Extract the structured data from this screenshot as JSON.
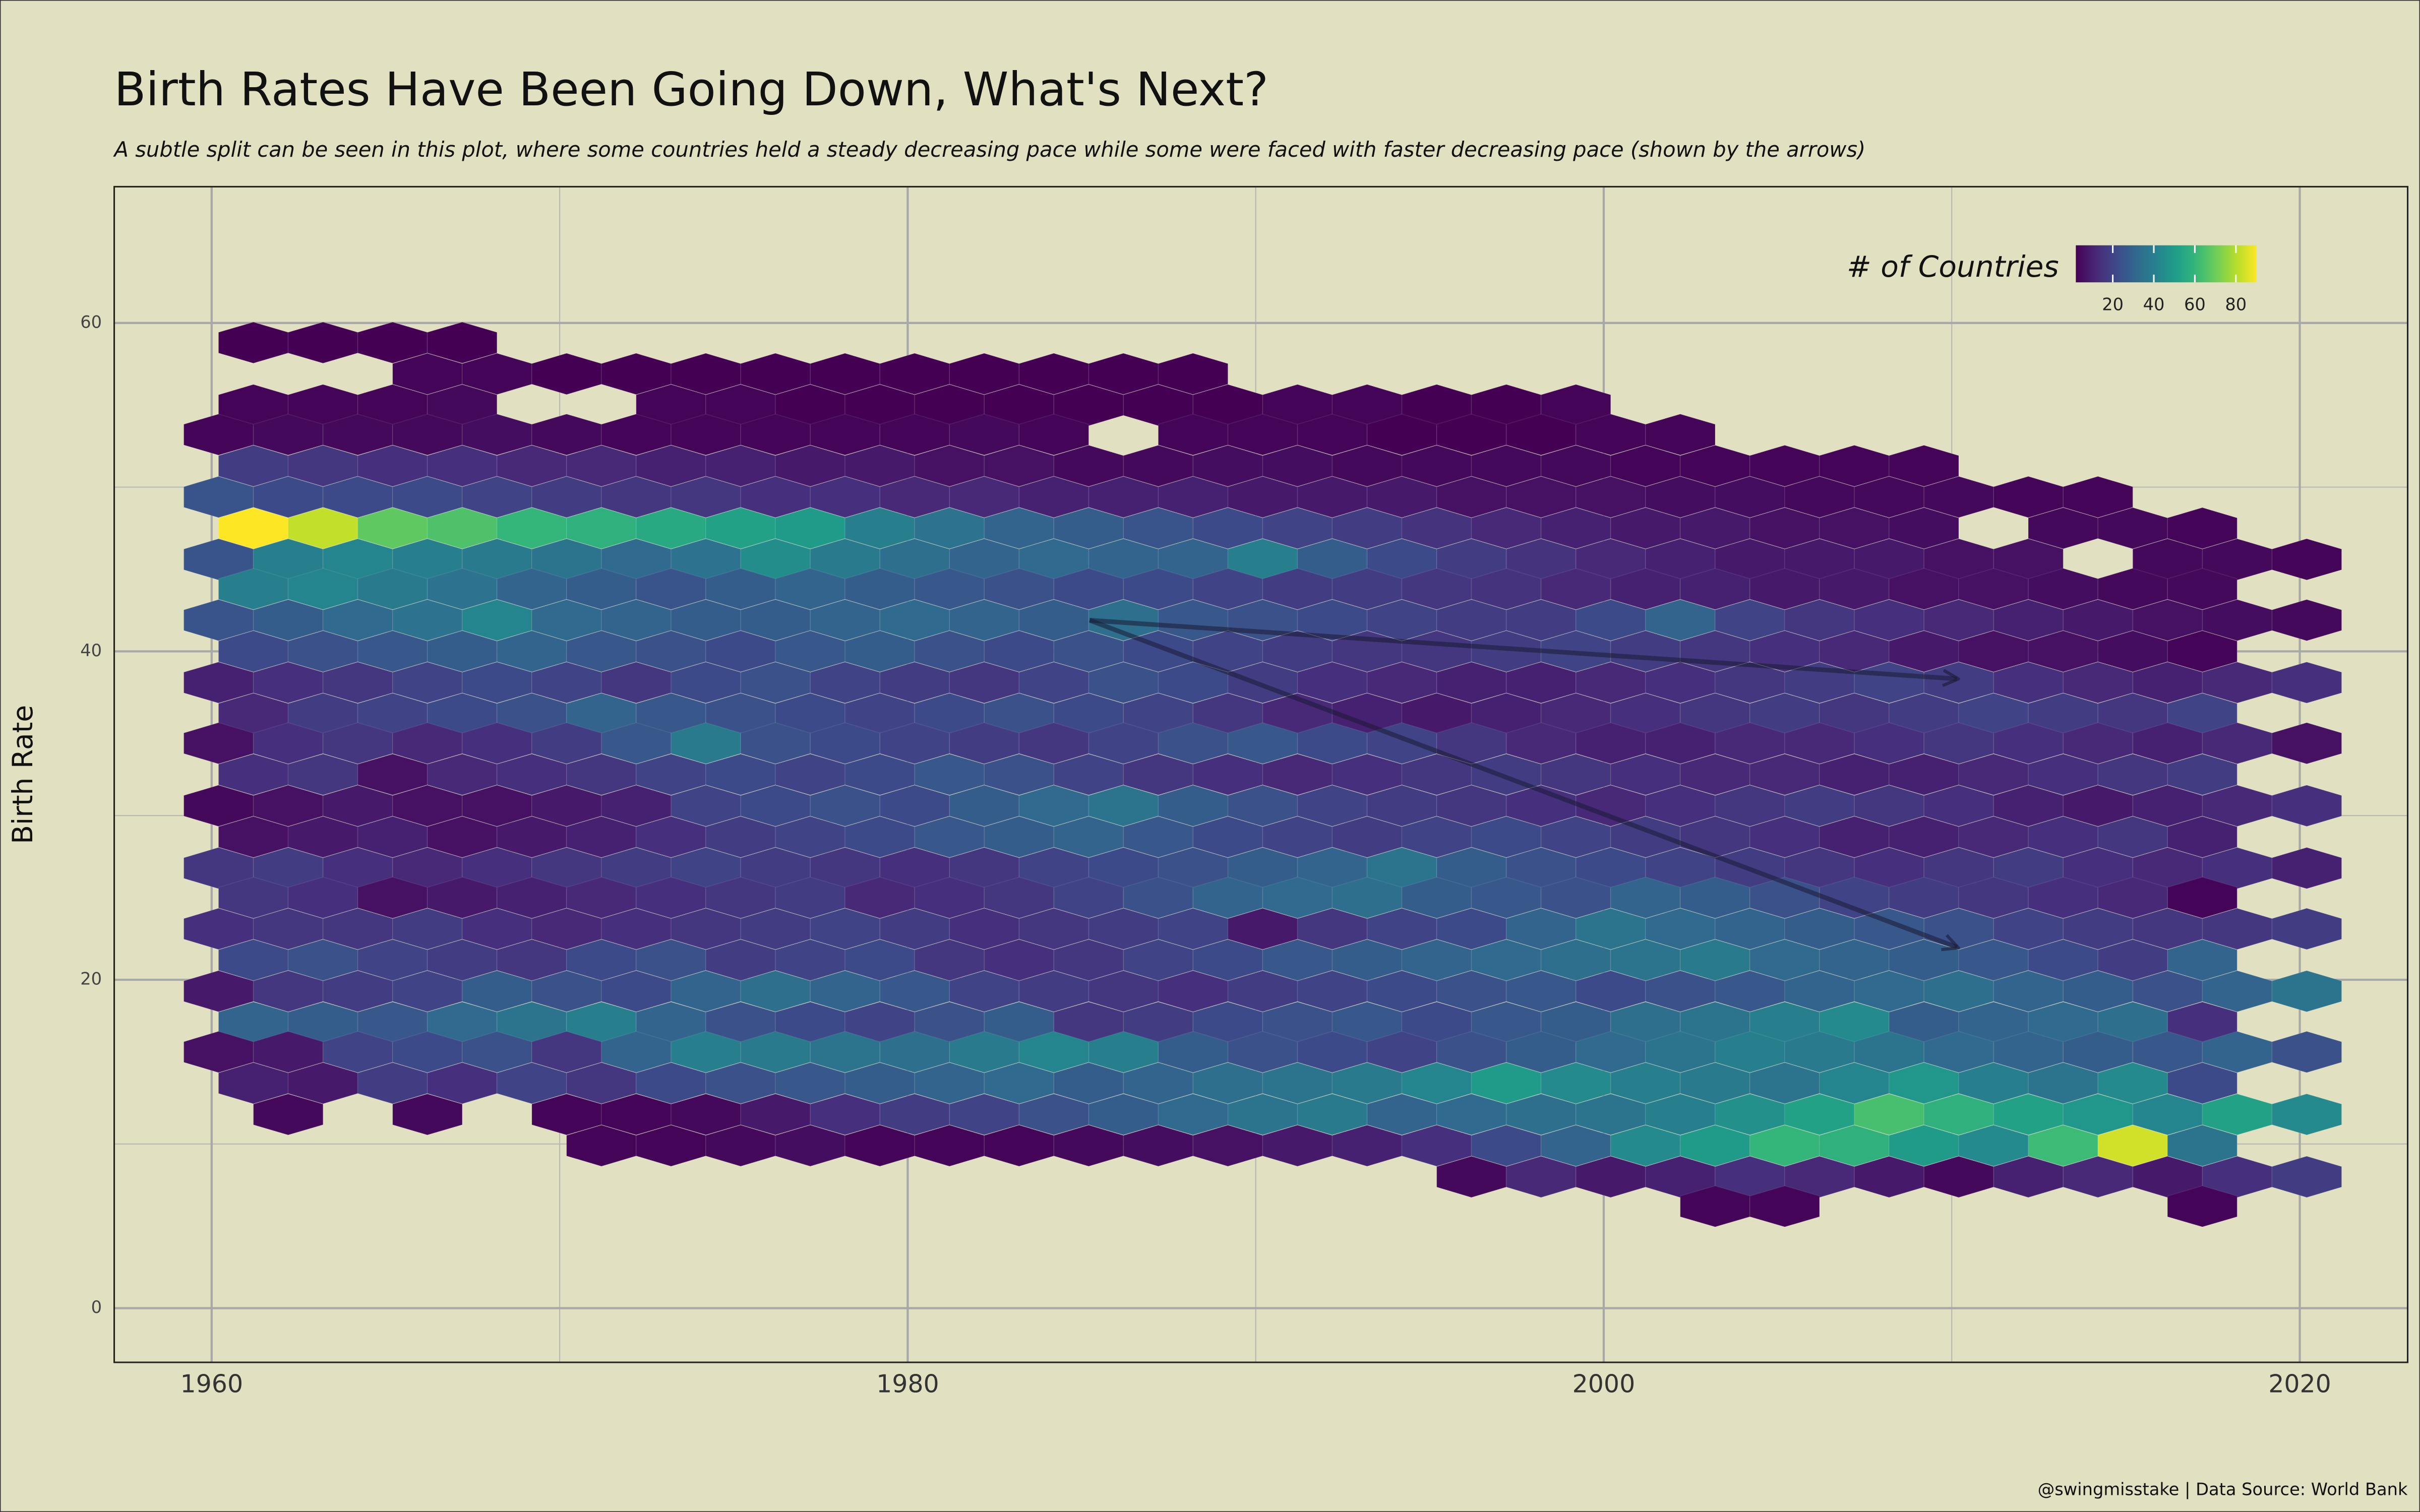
{
  "chart_data": {
    "type": "hexbin",
    "title": "Birth Rates Have Been Going Down, What's Next?",
    "subtitle": "A subtle split can be seen in this plot, where some countries held a steady decreasing pace while some were faced with faster decreasing pace (shown by the arrows)",
    "y_label": "Birth Rate",
    "caption": "@swingmisstake | Data Source: World Bank",
    "xlim": [
      1957.2,
      2023.1
    ],
    "ylim": [
      -3.3,
      68.3
    ],
    "xticks": [
      1960,
      1980,
      2000,
      2020
    ],
    "x_minor_ticks": [
      1970,
      1990,
      2010
    ],
    "yticks": [
      0,
      20,
      40,
      60
    ],
    "y_minor_ticks": [
      10,
      30,
      50
    ],
    "grid": true,
    "binwidth": [
      2,
      1.88
    ],
    "colormap": "viridis",
    "legend": {
      "title": "# of Countries",
      "position": "top-right",
      "lim": [
        2,
        90
      ],
      "ticks": [
        20,
        40,
        60,
        80
      ]
    },
    "rows": [
      {
        "y": 58.8,
        "x0": 1961.2,
        "counts": [
          2,
          2,
          2,
          2
        ]
      },
      {
        "y": 56.9,
        "x0": 1966.2,
        "counts": [
          3,
          3,
          2,
          2,
          2,
          2,
          2,
          2,
          2,
          2,
          2,
          2
        ]
      },
      {
        "y": 55.0,
        "x0": 1961.2,
        "counts": [
          3,
          3,
          3,
          4,
          null,
          null,
          3,
          3,
          2,
          2,
          2,
          2,
          2,
          2,
          2,
          3,
          3,
          2,
          2,
          3
        ]
      },
      {
        "y": 53.2,
        "x0": 1960.2,
        "counts": [
          3,
          4,
          4,
          4,
          5,
          4,
          3,
          3,
          3,
          3,
          3,
          4,
          3,
          null,
          3,
          3,
          3,
          2,
          2,
          2,
          3,
          3
        ]
      },
      {
        "y": 51.3,
        "x0": 1961.2,
        "counts": [
          18,
          16,
          14,
          14,
          12,
          12,
          10,
          10,
          8,
          8,
          6,
          6,
          4,
          4,
          5,
          5,
          4,
          4,
          4,
          4,
          3,
          3,
          3,
          3,
          3
        ]
      },
      {
        "y": 49.4,
        "x0": 1960.2,
        "counts": [
          25,
          22,
          22,
          22,
          20,
          18,
          16,
          16,
          14,
          14,
          12,
          12,
          10,
          10,
          10,
          8,
          8,
          8,
          6,
          6,
          6,
          5,
          5,
          4,
          4,
          4,
          3,
          3
        ]
      },
      {
        "y": 47.5,
        "x0": 1961.2,
        "counts": [
          90,
          82,
          68,
          65,
          60,
          58,
          55,
          52,
          50,
          40,
          35,
          30,
          28,
          25,
          22,
          20,
          18,
          15,
          12,
          10,
          8,
          8,
          6,
          6,
          5,
          null,
          4,
          4,
          3
        ]
      },
      {
        "y": 45.6,
        "x0": 1960.2,
        "counts": [
          25,
          40,
          42,
          40,
          38,
          36,
          32,
          35,
          45,
          38,
          34,
          30,
          32,
          30,
          30,
          40,
          28,
          22,
          18,
          15,
          12,
          10,
          8,
          8,
          8,
          6,
          6,
          null,
          4,
          4,
          3
        ]
      },
      {
        "y": 43.8,
        "x0": 1961.2,
        "counts": [
          40,
          42,
          38,
          35,
          30,
          28,
          25,
          28,
          30,
          28,
          26,
          24,
          22,
          22,
          20,
          18,
          18,
          16,
          15,
          12,
          10,
          10,
          8,
          8,
          6,
          6,
          5,
          4,
          4
        ]
      },
      {
        "y": 41.9,
        "x0": 1960.2,
        "counts": [
          25,
          28,
          32,
          35,
          42,
          32,
          30,
          28,
          28,
          30,
          32,
          30,
          28,
          34,
          26,
          24,
          22,
          20,
          18,
          18,
          22,
          30,
          20,
          16,
          14,
          12,
          10,
          8,
          6,
          5,
          4
        ]
      },
      {
        "y": 40.0,
        "x0": 1961.2,
        "counts": [
          22,
          24,
          26,
          28,
          30,
          26,
          24,
          22,
          26,
          28,
          24,
          22,
          24,
          22,
          20,
          18,
          16,
          16,
          18,
          20,
          18,
          16,
          14,
          12,
          8,
          6,
          6,
          5,
          3
        ]
      },
      {
        "y": 38.1,
        "x0": 1960.2,
        "counts": [
          10,
          14,
          16,
          20,
          22,
          20,
          16,
          22,
          24,
          20,
          18,
          16,
          20,
          24,
          22,
          18,
          14,
          12,
          10,
          10,
          12,
          14,
          16,
          18,
          20,
          18,
          14,
          12,
          10,
          12,
          14
        ]
      },
      {
        "y": 36.2,
        "x0": 1961.2,
        "counts": [
          12,
          18,
          20,
          22,
          24,
          30,
          26,
          24,
          22,
          20,
          22,
          24,
          22,
          20,
          16,
          12,
          10,
          8,
          10,
          12,
          14,
          16,
          18,
          16,
          18,
          20,
          18,
          16,
          20
        ]
      },
      {
        "y": 34.4,
        "x0": 1960.2,
        "counts": [
          6,
          14,
          16,
          12,
          14,
          18,
          26,
          38,
          24,
          22,
          20,
          18,
          16,
          20,
          24,
          26,
          22,
          20,
          16,
          12,
          10,
          10,
          12,
          12,
          14,
          16,
          14,
          12,
          10,
          12,
          6
        ]
      },
      {
        "y": 32.5,
        "x0": 1961.2,
        "counts": [
          14,
          16,
          6,
          12,
          14,
          16,
          20,
          22,
          20,
          22,
          26,
          24,
          20,
          16,
          14,
          12,
          14,
          16,
          18,
          16,
          14,
          12,
          12,
          10,
          10,
          12,
          14,
          16,
          18
        ]
      },
      {
        "y": 30.6,
        "x0": 1960.2,
        "counts": [
          4,
          6,
          8,
          6,
          6,
          8,
          10,
          20,
          22,
          24,
          22,
          28,
          32,
          36,
          28,
          24,
          20,
          18,
          16,
          14,
          12,
          14,
          16,
          18,
          16,
          14,
          10,
          8,
          10,
          12,
          14
        ]
      },
      {
        "y": 28.7,
        "x0": 1961.2,
        "counts": [
          6,
          8,
          10,
          6,
          8,
          10,
          14,
          18,
          20,
          22,
          26,
          28,
          30,
          26,
          22,
          20,
          18,
          20,
          22,
          20,
          18,
          16,
          14,
          10,
          10,
          12,
          14,
          16,
          10
        ]
      },
      {
        "y": 26.8,
        "x0": 1960.2,
        "counts": [
          16,
          18,
          14,
          12,
          14,
          16,
          18,
          20,
          18,
          16,
          14,
          16,
          20,
          22,
          24,
          28,
          30,
          36,
          28,
          24,
          22,
          20,
          18,
          16,
          14,
          16,
          18,
          14,
          12,
          14,
          10
        ]
      },
      {
        "y": 25.0,
        "x0": 1961.2,
        "counts": [
          16,
          14,
          6,
          8,
          10,
          12,
          14,
          16,
          18,
          12,
          14,
          16,
          20,
          24,
          30,
          32,
          34,
          28,
          26,
          24,
          30,
          28,
          24,
          20,
          18,
          16,
          14,
          12,
          3
        ]
      },
      {
        "y": 23.1,
        "x0": 1960.2,
        "counts": [
          14,
          16,
          16,
          18,
          14,
          12,
          14,
          16,
          18,
          20,
          18,
          14,
          16,
          18,
          20,
          8,
          16,
          20,
          22,
          30,
          36,
          32,
          30,
          28,
          26,
          24,
          20,
          18,
          16,
          16,
          18
        ]
      },
      {
        "y": 21.2,
        "x0": 1961.2,
        "counts": [
          22,
          24,
          20,
          18,
          16,
          22,
          24,
          18,
          20,
          22,
          16,
          14,
          16,
          20,
          22,
          26,
          28,
          30,
          32,
          34,
          36,
          38,
          32,
          30,
          28,
          26,
          22,
          18,
          30
        ]
      },
      {
        "y": 19.3,
        "x0": 1960.2,
        "counts": [
          8,
          16,
          18,
          20,
          28,
          24,
          22,
          30,
          34,
          30,
          26,
          20,
          18,
          16,
          14,
          18,
          20,
          22,
          24,
          26,
          22,
          24,
          26,
          30,
          32,
          34,
          30,
          28,
          24,
          30,
          36
        ]
      },
      {
        "y": 17.4,
        "x0": 1961.2,
        "counts": [
          30,
          28,
          26,
          32,
          36,
          40,
          30,
          24,
          22,
          20,
          24,
          28,
          16,
          18,
          22,
          24,
          26,
          22,
          26,
          28,
          34,
          36,
          40,
          44,
          28,
          30,
          32,
          34,
          14
        ]
      },
      {
        "y": 15.6,
        "x0": 1960.2,
        "counts": [
          6,
          8,
          20,
          22,
          24,
          16,
          30,
          40,
          38,
          36,
          34,
          38,
          42,
          40,
          28,
          24,
          22,
          20,
          24,
          28,
          32,
          36,
          40,
          38,
          36,
          32,
          30,
          28,
          26,
          30,
          24
        ]
      },
      {
        "y": 13.7,
        "x0": 1961.2,
        "counts": [
          10,
          8,
          18,
          14,
          20,
          16,
          22,
          24,
          26,
          28,
          30,
          32,
          28,
          30,
          34,
          36,
          38,
          42,
          50,
          44,
          40,
          38,
          36,
          42,
          48,
          40,
          36,
          44,
          22
        ]
      },
      {
        "y": 11.8,
        "x0": 1960.2,
        "counts": [
          null,
          4,
          null,
          4,
          null,
          3,
          3,
          4,
          8,
          14,
          18,
          20,
          24,
          28,
          32,
          36,
          38,
          30,
          32,
          34,
          36,
          40,
          46,
          52,
          64,
          58,
          52,
          48,
          42,
          52,
          44
        ]
      },
      {
        "y": 9.9,
        "x0": 1971.2,
        "counts": [
          3,
          3,
          4,
          5,
          3,
          3,
          3,
          4,
          5,
          6,
          8,
          10,
          14,
          22,
          30,
          44,
          50,
          60,
          58,
          50,
          44,
          62,
          84,
          36
        ]
      },
      {
        "y": 8.0,
        "x0": 1996.2,
        "counts": [
          4,
          12,
          8,
          10,
          14,
          12,
          8,
          4,
          10,
          12,
          8,
          14,
          18
        ]
      },
      {
        "y": 6.2,
        "x0": 2003.2,
        "counts": [
          3,
          3,
          null,
          null,
          null,
          null,
          null,
          3
        ]
      }
    ]
  }
}
